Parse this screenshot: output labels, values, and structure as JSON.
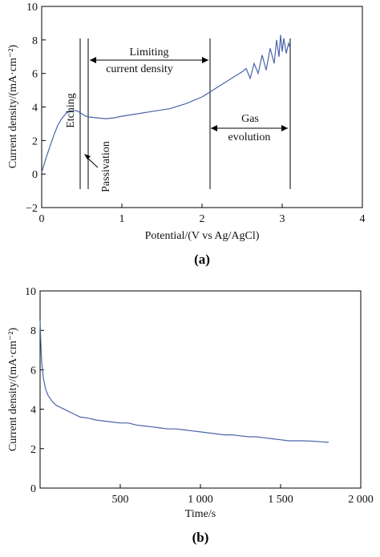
{
  "colors": {
    "series": "#4a64a8",
    "axis": "#000000",
    "marker": "#000000"
  },
  "chart_data": [
    {
      "type": "line",
      "panel_label": "(a)",
      "xlabel": "Potential/(V vs Ag/AgCl)",
      "ylabel": "Current density/(mA·cm⁻²)",
      "xlim": [
        0,
        4
      ],
      "ylim": [
        -2,
        10
      ],
      "xticks": [
        0,
        1,
        2,
        3,
        4
      ],
      "xtick_labels": [
        "0",
        "1",
        "2",
        "3",
        "4"
      ],
      "yticks": [
        -2,
        0,
        2,
        4,
        6,
        8,
        10
      ],
      "ytick_labels": [
        "−2",
        "0",
        "2",
        "4",
        "6",
        "8",
        "10"
      ],
      "grid": false,
      "series": [
        {
          "x": [
            0.0,
            0.05,
            0.1,
            0.15,
            0.2,
            0.25,
            0.3,
            0.35,
            0.4,
            0.45,
            0.5,
            0.55,
            0.6,
            0.7,
            0.8,
            0.9,
            1.0,
            1.2,
            1.4,
            1.6,
            1.8,
            2.0,
            2.1,
            2.2,
            2.3,
            2.4,
            2.5,
            2.55,
            2.6,
            2.65,
            2.7,
            2.75,
            2.8,
            2.85,
            2.9,
            2.93,
            2.96,
            2.98,
            3.0,
            3.02,
            3.05,
            3.08,
            3.1
          ],
          "y": [
            0.1,
            0.9,
            1.6,
            2.3,
            2.9,
            3.3,
            3.6,
            3.75,
            3.8,
            3.75,
            3.6,
            3.45,
            3.4,
            3.35,
            3.3,
            3.35,
            3.45,
            3.6,
            3.75,
            3.9,
            4.2,
            4.6,
            4.9,
            5.2,
            5.5,
            5.8,
            6.1,
            6.3,
            5.7,
            6.6,
            6.0,
            7.1,
            6.2,
            7.5,
            6.6,
            8.0,
            7.0,
            8.3,
            7.3,
            8.1,
            7.2,
            7.8,
            7.5
          ]
        }
      ],
      "annotations": {
        "etching": "Etching",
        "passivation": "Passivation",
        "limiting_1": "Limiting",
        "limiting_2": "current density",
        "gas_1": "Gas",
        "gas_2": "evolution"
      },
      "markers_x": [
        0.48,
        0.58,
        2.1,
        3.1
      ]
    },
    {
      "type": "line",
      "panel_label": "(b)",
      "xlabel": "Time/s",
      "ylabel": "Current density/(mA·cm⁻²)",
      "xlim": [
        0,
        2000
      ],
      "ylim": [
        0,
        10
      ],
      "xticks": [
        500,
        1000,
        1500,
        2000
      ],
      "xtick_labels": [
        "500",
        "1 000",
        "1 500",
        "2 000"
      ],
      "yticks": [
        0,
        2,
        4,
        6,
        8,
        10
      ],
      "ytick_labels": [
        "0",
        "2",
        "4",
        "6",
        "8",
        "10"
      ],
      "grid": false,
      "series": [
        {
          "x": [
            0,
            5,
            10,
            20,
            35,
            50,
            75,
            100,
            150,
            200,
            250,
            300,
            350,
            400,
            450,
            500,
            550,
            600,
            650,
            700,
            750,
            800,
            850,
            900,
            950,
            1000,
            1050,
            1100,
            1150,
            1200,
            1250,
            1300,
            1350,
            1400,
            1450,
            1500,
            1550,
            1600,
            1650,
            1700,
            1750,
            1800
          ],
          "y": [
            8.5,
            7.3,
            6.4,
            5.6,
            5.0,
            4.7,
            4.4,
            4.2,
            4.0,
            3.8,
            3.6,
            3.55,
            3.45,
            3.4,
            3.35,
            3.3,
            3.3,
            3.2,
            3.15,
            3.1,
            3.05,
            3.0,
            3.0,
            2.95,
            2.9,
            2.85,
            2.8,
            2.75,
            2.7,
            2.7,
            2.65,
            2.6,
            2.6,
            2.55,
            2.5,
            2.45,
            2.4,
            2.4,
            2.4,
            2.38,
            2.35,
            2.32
          ]
        }
      ]
    }
  ]
}
